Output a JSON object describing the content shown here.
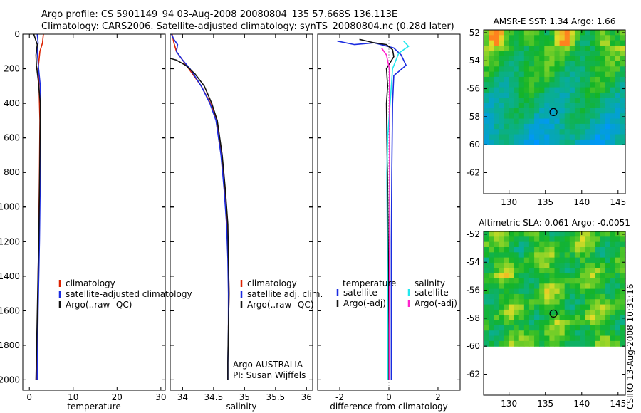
{
  "header": {
    "line1": "Argo profile: CS 5901149_94 03-Aug-2008 20080804_135 57.668S 136.113E",
    "line2": "Climatology: CARS2006. Satellite-adjusted climatology: synTS_20080804.nc (0.28d later)"
  },
  "side_label": "CSIRO 13-Aug-2008 10:31:16",
  "colors": {
    "climatology": "#dd2200",
    "satellite": "#1a2be0",
    "argo": "#111111",
    "argo_adj": "#ff22cc",
    "sat_salinity": "#22e8ee"
  },
  "chart_data": [
    {
      "type": "line",
      "xlabel": "temperature",
      "ylabel": "",
      "xlim": [
        -1.5,
        31
      ],
      "ylim": [
        2060,
        0
      ],
      "xticks": [
        0,
        10,
        20,
        30
      ],
      "yticks": [
        0,
        200,
        400,
        600,
        800,
        1000,
        1200,
        1400,
        1600,
        1800,
        2000
      ],
      "legend": {
        "placement": "bottom-center",
        "entries": [
          "climatology",
          "satellite-adjusted climatology",
          "Argo(..raw -QC)"
        ]
      },
      "series": [
        {
          "name": "climatology",
          "points": [
            [
              3.2,
              0
            ],
            [
              3.0,
              50
            ],
            [
              2.4,
              100
            ],
            [
              2.0,
              200
            ],
            [
              2.2,
              300
            ],
            [
              2.4,
              500
            ],
            [
              2.3,
              800
            ],
            [
              2.1,
              1200
            ],
            [
              1.9,
              1600
            ],
            [
              1.6,
              2000
            ]
          ]
        },
        {
          "name": "satellite-adjusted climatology",
          "points": [
            [
              1.8,
              0
            ],
            [
              2.0,
              50
            ],
            [
              1.8,
              100
            ],
            [
              2.1,
              200
            ],
            [
              2.5,
              300
            ],
            [
              2.6,
              500
            ],
            [
              2.5,
              800
            ],
            [
              2.3,
              1200
            ],
            [
              2.0,
              1600
            ],
            [
              1.8,
              2000
            ]
          ]
        },
        {
          "name": "Argo(..raw -QC)",
          "points": [
            [
              1.0,
              0
            ],
            [
              1.8,
              60
            ],
            [
              1.5,
              120
            ],
            [
              1.6,
              180
            ],
            [
              2.0,
              260
            ],
            [
              2.5,
              400
            ],
            [
              2.4,
              700
            ],
            [
              2.2,
              1100
            ],
            [
              1.9,
              1500
            ],
            [
              1.5,
              2000
            ]
          ]
        }
      ]
    },
    {
      "type": "line",
      "xlabel": "salinity",
      "ylabel": "",
      "xlim": [
        33.8,
        36.1
      ],
      "ylim": [
        2060,
        0
      ],
      "xticks": [
        34,
        34.5,
        35,
        35.5,
        36
      ],
      "xtick_labels": [
        "34",
        "34.5",
        "35",
        "35.5",
        "36"
      ],
      "legend": {
        "placement": "bottom-right",
        "entries": [
          "climatology",
          "satellite adj. clim.",
          "Argo(..raw -QC)"
        ]
      },
      "annotation": {
        "line1": "Argo AUSTRALIA",
        "line2": "PI: Susan Wijffels"
      },
      "series": [
        {
          "name": "climatology",
          "points": [
            [
              33.83,
              0
            ],
            [
              33.86,
              50
            ],
            [
              33.9,
              100
            ],
            [
              34.0,
              150
            ],
            [
              34.1,
              200
            ],
            [
              34.3,
              300
            ],
            [
              34.45,
              400
            ],
            [
              34.55,
              500
            ],
            [
              34.63,
              700
            ],
            [
              34.68,
              900
            ],
            [
              34.72,
              1100
            ],
            [
              34.74,
              1300
            ],
            [
              34.75,
              1500
            ],
            [
              34.74,
              1700
            ]
          ]
        },
        {
          "name": "satellite adj. clim.",
          "points": [
            [
              33.82,
              0
            ],
            [
              33.86,
              30
            ],
            [
              33.92,
              60
            ],
            [
              33.9,
              100
            ],
            [
              34.0,
              150
            ],
            [
              34.12,
              200
            ],
            [
              34.3,
              300
            ],
            [
              34.44,
              400
            ],
            [
              34.54,
              500
            ],
            [
              34.62,
              700
            ],
            [
              34.67,
              900
            ],
            [
              34.71,
              1100
            ],
            [
              34.73,
              1300
            ],
            [
              34.74,
              1500
            ],
            [
              34.74,
              1700
            ],
            [
              34.73,
              1900
            ],
            [
              34.73,
              2000
            ]
          ]
        },
        {
          "name": "Argo(..raw -QC)",
          "points": [
            [
              33.8,
              140
            ],
            [
              33.9,
              150
            ],
            [
              34.05,
              180
            ],
            [
              34.2,
              230
            ],
            [
              34.35,
              300
            ],
            [
              34.47,
              400
            ],
            [
              34.56,
              500
            ],
            [
              34.64,
              700
            ],
            [
              34.69,
              900
            ],
            [
              34.73,
              1100
            ],
            [
              34.74,
              1300
            ],
            [
              34.75,
              1500
            ],
            [
              34.74,
              1700
            ],
            [
              34.73,
              1900
            ],
            [
              34.73,
              2000
            ]
          ]
        }
      ]
    },
    {
      "type": "line",
      "xlabel": "difference from climatology",
      "ylabel": "",
      "xlim": [
        -2.9,
        2.9
      ],
      "ylim": [
        2060,
        0
      ],
      "xticks": [
        -2,
        0,
        2
      ],
      "legend": {
        "placement": "bottom",
        "groups": [
          {
            "title": "temperature",
            "entries": [
              "satellite",
              "Argo(-adj)"
            ]
          },
          {
            "title": "salinity",
            "entries": [
              "satellite",
              "Argo(-adj)"
            ]
          }
        ]
      },
      "series": [
        {
          "name": "temperature satellite",
          "points": [
            [
              -2.1,
              40
            ],
            [
              -1.4,
              60
            ],
            [
              -0.6,
              50
            ],
            [
              0.2,
              80
            ],
            [
              0.5,
              120
            ],
            [
              0.7,
              180
            ],
            [
              0.2,
              240
            ],
            [
              0.15,
              400
            ],
            [
              0.12,
              800
            ],
            [
              0.1,
              1200
            ],
            [
              0.1,
              1600
            ],
            [
              0.1,
              2000
            ]
          ]
        },
        {
          "name": "temperature Argo(-adj)",
          "points": [
            [
              -1.2,
              30
            ],
            [
              -0.6,
              50
            ],
            [
              -0.1,
              60
            ],
            [
              0.15,
              90
            ],
            [
              0.2,
              130
            ],
            [
              -0.1,
              200
            ],
            [
              -0.05,
              300
            ],
            [
              -0.1,
              400
            ],
            [
              -0.08,
              600
            ],
            [
              -0.05,
              900
            ],
            [
              -0.02,
              1300
            ],
            [
              0,
              1700
            ],
            [
              0,
              2000
            ]
          ]
        },
        {
          "name": "salinity satellite",
          "points": [
            [
              0.6,
              40
            ],
            [
              0.8,
              70
            ],
            [
              0.4,
              110
            ],
            [
              0.15,
              200
            ],
            [
              0.05,
              400
            ],
            [
              -0.05,
              600
            ],
            [
              -0.08,
              800
            ],
            [
              -0.06,
              1200
            ],
            [
              -0.05,
              1600
            ],
            [
              -0.05,
              2000
            ]
          ]
        },
        {
          "name": "salinity Argo(-adj)",
          "points": [
            [
              -0.3,
              80
            ],
            [
              -0.1,
              120
            ],
            [
              0.02,
              200
            ],
            [
              0.03,
              500
            ],
            [
              0.03,
              1000
            ],
            [
              0.02,
              1500
            ],
            [
              0.02,
              2000
            ]
          ]
        }
      ]
    },
    {
      "type": "heatmap",
      "title": "AMSR-E SST: 1.34 Argo: 1.66",
      "xlim": [
        126.5,
        146
      ],
      "ylim": [
        -63.5,
        -51.8
      ],
      "xticks": [
        130,
        135,
        140,
        145
      ],
      "yticks": [
        -52,
        -54,
        -56,
        -58,
        -60,
        -62
      ],
      "data_extent_y": [
        -60,
        -51.8
      ],
      "marker": {
        "lon": 136.113,
        "lat": -57.668
      }
    },
    {
      "type": "heatmap",
      "title": "Altimetric SLA: 0.061 Argo: -0.0051",
      "xlim": [
        126.5,
        146
      ],
      "ylim": [
        -63.5,
        -51.8
      ],
      "xticks": [
        130,
        135,
        140,
        145
      ],
      "yticks": [
        -52,
        -54,
        -56,
        -58,
        -60,
        -62
      ],
      "data_extent_y": [
        -60,
        -51.8
      ],
      "marker": {
        "lon": 136.113,
        "lat": -57.668
      }
    }
  ]
}
